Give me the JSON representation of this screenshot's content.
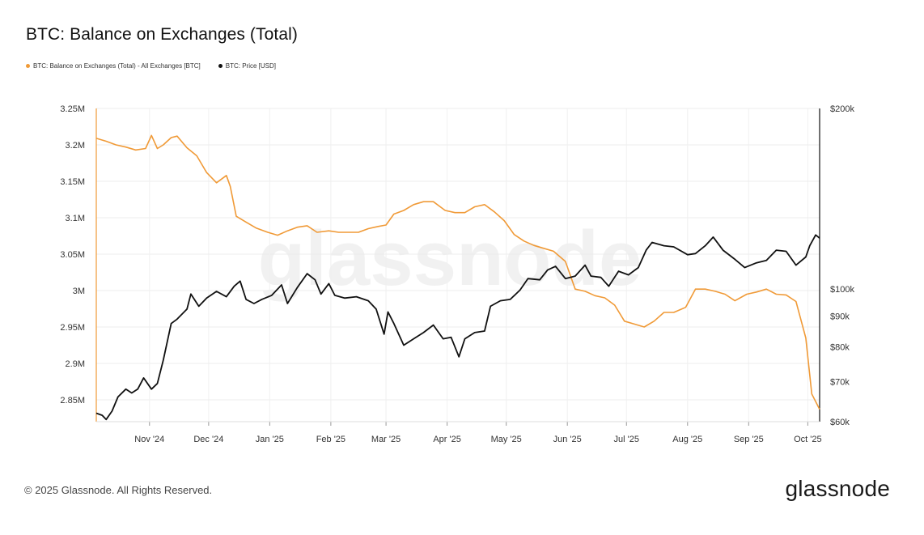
{
  "title": "BTC: Balance on Exchanges (Total)",
  "footer": {
    "copyright": "© 2025 Glassnode. All Rights Reserved.",
    "brand": "glassnode"
  },
  "watermark": "glassnode",
  "chart_data": {
    "type": "line",
    "title": "BTC: Balance on Exchanges (Total)",
    "legend_placement": "top-left",
    "grid": true,
    "x_axis": {
      "range": [
        "2024-10-05",
        "2025-10-07"
      ],
      "ticks": [
        {
          "label": "Nov '24",
          "date": "2024-11-01"
        },
        {
          "label": "Dec '24",
          "date": "2024-12-01"
        },
        {
          "label": "Jan '25",
          "date": "2025-01-01"
        },
        {
          "label": "Feb '25",
          "date": "2025-02-01"
        },
        {
          "label": "Mar '25",
          "date": "2025-03-01"
        },
        {
          "label": "Apr '25",
          "date": "2025-04-01"
        },
        {
          "label": "May '25",
          "date": "2025-05-01"
        },
        {
          "label": "Jun '25",
          "date": "2025-06-01"
        },
        {
          "label": "Jul '25",
          "date": "2025-07-01"
        },
        {
          "label": "Aug '25",
          "date": "2025-08-01"
        },
        {
          "label": "Sep '25",
          "date": "2025-09-01"
        },
        {
          "label": "Oct '25",
          "date": "2025-10-01"
        }
      ]
    },
    "y_left": {
      "range": [
        2820000,
        3250000
      ],
      "ticks": [
        {
          "label": "3.25M",
          "value": 3250000
        },
        {
          "label": "3.2M",
          "value": 3200000
        },
        {
          "label": "3.15M",
          "value": 3150000
        },
        {
          "label": "3.1M",
          "value": 3100000
        },
        {
          "label": "3.05M",
          "value": 3050000
        },
        {
          "label": "3M",
          "value": 3000000
        },
        {
          "label": "2.95M",
          "value": 2950000
        },
        {
          "label": "2.9M",
          "value": 2900000
        },
        {
          "label": "2.85M",
          "value": 2850000
        }
      ]
    },
    "y_right": {
      "scale": "log",
      "range": [
        60000,
        200000
      ],
      "ticks": [
        {
          "label": "$200k",
          "value": 200000
        },
        {
          "label": "$100k",
          "value": 100000
        },
        {
          "label": "$90k",
          "value": 90000
        },
        {
          "label": "$80k",
          "value": 80000
        },
        {
          "label": "$70k",
          "value": 70000
        },
        {
          "label": "$60k",
          "value": 60000
        }
      ]
    },
    "series": [
      {
        "name": "BTC: Balance on Exchanges (Total) - All Exchanges [BTC]",
        "axis": "left",
        "color": "#f09a37",
        "x": [
          "2024-10-05",
          "2024-10-10",
          "2024-10-15",
          "2024-10-20",
          "2024-10-25",
          "2024-10-30",
          "2024-11-02",
          "2024-11-05",
          "2024-11-08",
          "2024-11-12",
          "2024-11-15",
          "2024-11-20",
          "2024-11-25",
          "2024-11-30",
          "2024-12-05",
          "2024-12-10",
          "2024-12-12",
          "2024-12-15",
          "2024-12-20",
          "2024-12-25",
          "2024-12-31",
          "2025-01-05",
          "2025-01-10",
          "2025-01-15",
          "2025-01-20",
          "2025-01-25",
          "2025-01-31",
          "2025-02-05",
          "2025-02-10",
          "2025-02-15",
          "2025-02-20",
          "2025-02-25",
          "2025-03-01",
          "2025-03-05",
          "2025-03-10",
          "2025-03-15",
          "2025-03-20",
          "2025-03-25",
          "2025-03-31",
          "2025-04-05",
          "2025-04-10",
          "2025-04-15",
          "2025-04-20",
          "2025-04-25",
          "2025-04-30",
          "2025-05-05",
          "2025-05-10",
          "2025-05-15",
          "2025-05-20",
          "2025-05-25",
          "2025-05-31",
          "2025-06-05",
          "2025-06-10",
          "2025-06-15",
          "2025-06-20",
          "2025-06-25",
          "2025-06-30",
          "2025-07-05",
          "2025-07-10",
          "2025-07-15",
          "2025-07-20",
          "2025-07-25",
          "2025-07-31",
          "2025-08-05",
          "2025-08-10",
          "2025-08-15",
          "2025-08-20",
          "2025-08-25",
          "2025-08-31",
          "2025-09-05",
          "2025-09-10",
          "2025-09-15",
          "2025-09-20",
          "2025-09-25",
          "2025-09-30",
          "2025-10-03",
          "2025-10-07"
        ],
        "values": [
          3209000,
          3205000,
          3200000,
          3197000,
          3193000,
          3195000,
          3213000,
          3195000,
          3200000,
          3210000,
          3212000,
          3196000,
          3185000,
          3162000,
          3148000,
          3158000,
          3143000,
          3102000,
          3094000,
          3086000,
          3080000,
          3076000,
          3082000,
          3087000,
          3089000,
          3080000,
          3082000,
          3080000,
          3080000,
          3080000,
          3085000,
          3088000,
          3090000,
          3105000,
          3110000,
          3118000,
          3122000,
          3122000,
          3110000,
          3107000,
          3107000,
          3115000,
          3118000,
          3108000,
          3096000,
          3077000,
          3068000,
          3062000,
          3058000,
          3054000,
          3040000,
          3002000,
          2999000,
          2993000,
          2990000,
          2980000,
          2958000,
          2954000,
          2950000,
          2958000,
          2970000,
          2970000,
          2977000,
          3002000,
          3002000,
          2999000,
          2995000,
          2986000,
          2995000,
          2998000,
          3002000,
          2995000,
          2994000,
          2985000,
          2935000,
          2858000,
          2837000
        ]
      },
      {
        "name": "BTC: Price [USD]",
        "axis": "right",
        "color": "#111111",
        "x": [
          "2024-10-05",
          "2024-10-08",
          "2024-10-10",
          "2024-10-13",
          "2024-10-16",
          "2024-10-20",
          "2024-10-23",
          "2024-10-26",
          "2024-10-29",
          "2024-11-02",
          "2024-11-05",
          "2024-11-08",
          "2024-11-12",
          "2024-11-15",
          "2024-11-20",
          "2024-11-22",
          "2024-11-26",
          "2024-11-30",
          "2024-12-05",
          "2024-12-10",
          "2024-12-14",
          "2024-12-17",
          "2024-12-20",
          "2024-12-24",
          "2024-12-28",
          "2025-01-02",
          "2025-01-07",
          "2025-01-10",
          "2025-01-15",
          "2025-01-20",
          "2025-01-24",
          "2025-01-27",
          "2025-01-31",
          "2025-02-03",
          "2025-02-08",
          "2025-02-14",
          "2025-02-20",
          "2025-02-24",
          "2025-02-28",
          "2025-03-02",
          "2025-03-05",
          "2025-03-10",
          "2025-03-15",
          "2025-03-20",
          "2025-03-25",
          "2025-03-30",
          "2025-04-03",
          "2025-04-07",
          "2025-04-10",
          "2025-04-15",
          "2025-04-20",
          "2025-04-23",
          "2025-04-28",
          "2025-05-03",
          "2025-05-08",
          "2025-05-12",
          "2025-05-18",
          "2025-05-22",
          "2025-05-26",
          "2025-05-31",
          "2025-06-05",
          "2025-06-10",
          "2025-06-13",
          "2025-06-18",
          "2025-06-22",
          "2025-06-27",
          "2025-07-02",
          "2025-07-07",
          "2025-07-11",
          "2025-07-14",
          "2025-07-20",
          "2025-07-25",
          "2025-08-01",
          "2025-08-05",
          "2025-08-10",
          "2025-08-14",
          "2025-08-19",
          "2025-08-25",
          "2025-08-30",
          "2025-09-05",
          "2025-09-10",
          "2025-09-15",
          "2025-09-20",
          "2025-09-25",
          "2025-09-30",
          "2025-10-02",
          "2025-10-05",
          "2025-10-07"
        ],
        "values": [
          62000,
          61500,
          60500,
          62500,
          66000,
          68000,
          67000,
          68000,
          71000,
          68000,
          69500,
          76000,
          87500,
          89000,
          92500,
          98000,
          93500,
          96500,
          99000,
          97000,
          101000,
          103000,
          96000,
          94500,
          96000,
          97500,
          101500,
          94500,
          100500,
          106000,
          103500,
          98000,
          102000,
          97500,
          96500,
          97000,
          95500,
          92500,
          84000,
          91500,
          87500,
          80500,
          82500,
          84500,
          87000,
          82500,
          83000,
          77000,
          82500,
          84500,
          85000,
          93500,
          95500,
          96000,
          99500,
          104000,
          103500,
          107500,
          109000,
          104000,
          105000,
          109500,
          105000,
          104500,
          101000,
          107000,
          105500,
          108500,
          116000,
          119500,
          118000,
          117500,
          114000,
          114500,
          118000,
          122000,
          116000,
          112000,
          108500,
          110500,
          111500,
          116000,
          115500,
          109500,
          113000,
          118000,
          123000,
          121500
        ]
      }
    ]
  }
}
